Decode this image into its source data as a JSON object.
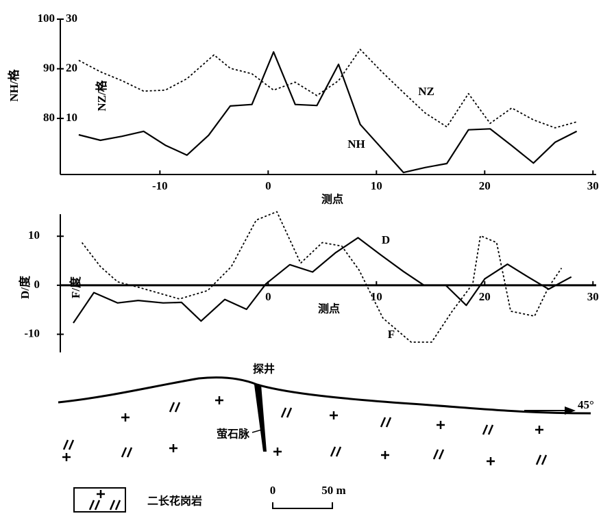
{
  "chart_data": [
    {
      "type": "line",
      "xlabel": "测点",
      "ylabel": "NH/格",
      "y2label": "NZ/格",
      "xlim": [
        -19.2,
        30.3
      ],
      "xticks": [
        -10,
        0,
        10,
        20,
        30
      ],
      "ylim": [
        68.7,
        100
      ],
      "yticks": [
        80,
        90,
        100
      ],
      "y2lim": [
        -1.3,
        30
      ],
      "y2ticks": [
        10,
        20,
        30
      ],
      "series": [
        {
          "name": "NH",
          "color": "#000000",
          "style": "solid",
          "x": [
            -17.5,
            -15.5,
            -13.5,
            -11.5,
            -9.5,
            -7.5,
            -5.5,
            -3.5,
            -1.5,
            0.5,
            2.5,
            4.5,
            6.5,
            8.5,
            12.5,
            14.5,
            16.5,
            18.5,
            20.5,
            22.5,
            24.5,
            26.5,
            28.5
          ],
          "values": [
            76.7,
            75.6,
            76.4,
            77.4,
            74.6,
            72.6,
            76.6,
            82.5,
            82.8,
            93.4,
            82.8,
            82.6,
            90.9,
            78.8,
            69.1,
            70.1,
            70.9,
            77.7,
            77.9,
            74.5,
            71.0,
            75.2,
            77.4
          ]
        },
        {
          "name": "NZ",
          "color": "#000000",
          "style": "dotted",
          "axis": "y2",
          "x": [
            -17.5,
            -15.5,
            -13.5,
            -11.5,
            -9.5,
            -7.5,
            -5,
            -3.5,
            -1.5,
            0.5,
            2.5,
            4.5,
            6.5,
            8.5,
            10.5,
            12.5,
            14.5,
            16.5,
            18.5,
            20.5,
            22.5,
            24.5,
            26.5,
            28.5
          ],
          "values": [
            21.7,
            19.4,
            17.6,
            15.5,
            15.7,
            18.0,
            22.8,
            20.1,
            19.0,
            15.7,
            17.3,
            14.6,
            17.6,
            23.9,
            19.4,
            15.2,
            11.1,
            8.3,
            15.0,
            9.0,
            12.1,
            9.7,
            8.1,
            9.3
          ]
        }
      ]
    },
    {
      "type": "line",
      "xlabel": "测点",
      "ylabel": "D/度",
      "y2label": "F/度",
      "xlim": [
        -19.2,
        30.3
      ],
      "xticks": [
        0,
        10,
        20,
        30
      ],
      "ylim": [
        -13.7,
        14.5
      ],
      "yticks": [
        -10,
        0,
        10
      ],
      "series": [
        {
          "name": "D",
          "color": "#000000",
          "style": "solid",
          "x": [
            -18.0,
            -16.1,
            -13.9,
            -12.0,
            -9.7,
            -8.0,
            -6.2,
            -4.0,
            -2.0,
            -0.2,
            2.0,
            4.1,
            6.2,
            8.3,
            10.4,
            12.5,
            14.4,
            16.4,
            18.3,
            20.0,
            22.1,
            24.0,
            25.9,
            28.0
          ],
          "values": [
            -7.7,
            -1.5,
            -3.6,
            -3.1,
            -3.6,
            -3.5,
            -7.3,
            -2.9,
            -4.9,
            0.3,
            4.2,
            2.7,
            6.6,
            9.7,
            6.2,
            2.8,
            0,
            0,
            -4.1,
            1.3,
            4.3,
            1.7,
            -0.8,
            1.7
          ]
        },
        {
          "name": "F",
          "color": "#000000",
          "style": "dotted",
          "x": [
            -17.2,
            -15.5,
            -13.9,
            -12.0,
            -8.2,
            -5.6,
            -3.4,
            -1.1,
            0.8,
            3.0,
            5.0,
            6.8,
            8.4,
            10.6,
            13.2,
            15.1,
            17.0,
            18.9,
            19.6,
            21.1,
            22.4,
            24.6,
            25.9,
            27.1
          ],
          "values": [
            8.7,
            3.8,
            0.7,
            -0.4,
            -2.8,
            -1.1,
            3.8,
            13.3,
            15.0,
            4.5,
            8.7,
            8.0,
            3.1,
            -6.7,
            -11.6,
            -11.6,
            -5.3,
            0.3,
            10.1,
            8.7,
            -5.3,
            -6.3,
            -0.4,
            3.5
          ]
        }
      ]
    }
  ],
  "section": {
    "well": "探井",
    "vein": "萤石脉",
    "direction": "45°",
    "legend": "二长花岗岩",
    "scale_start": "0",
    "scale_end": "50 m"
  }
}
